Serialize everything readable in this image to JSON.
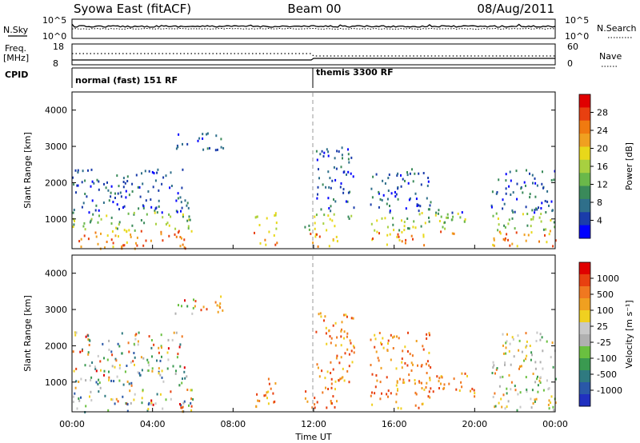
{
  "header": {
    "title_left": "Syowa East (fitACF)",
    "title_center": "Beam 00",
    "title_right": "08/Aug/2011"
  },
  "strips": {
    "nsky_label": "N.Sky",
    "nsky_top": "10^5",
    "nsky_bottom": "10^0",
    "nsearch_label": "N.Search",
    "nsearch_top": "10^5",
    "nsearch_bottom": "10^0",
    "freq_label_1": "Freq.",
    "freq_label_2": "[MHz]",
    "freq_top": "18",
    "freq_bottom": "8",
    "nave_label": "Nave",
    "nave_top": "60",
    "nave_bottom": "0",
    "cpid_label": "CPID",
    "cpid_mode_1": "normal (fast) 151 RF",
    "cpid_mode_2": "themis 3300 RF"
  },
  "panels": {
    "ylabel": "Slant Range [km]",
    "xlabel": "Time UT",
    "y_ticks": [
      "1000",
      "2000",
      "3000",
      "4000"
    ],
    "x_ticks": [
      "00:00",
      "04:00",
      "08:00",
      "12:00",
      "16:00",
      "20:00",
      "00:00"
    ]
  },
  "power_bar": {
    "label": "Power [dB]",
    "ticks": [
      "4",
      "8",
      "12",
      "16",
      "20",
      "24",
      "28"
    ],
    "colors": [
      "#0000ff",
      "#1a3caa",
      "#2f6f8a",
      "#3a8a5a",
      "#6ab84a",
      "#a8d040",
      "#e8d81a",
      "#f0a020",
      "#f07a10",
      "#e84010",
      "#e00000"
    ]
  },
  "velocity_bar": {
    "label": "Velocity [m s⁻¹]",
    "ticks": [
      "1000",
      "500",
      "100",
      "25",
      "-25",
      "-100",
      "-500",
      "-1000"
    ],
    "colors": [
      "#2030c0",
      "#2a58a8",
      "#2f7a80",
      "#3a9a50",
      "#6ac040",
      "#b0b0b0",
      "#c8c8c8",
      "#f0d020",
      "#f0a020",
      "#f07820",
      "#e84010",
      "#e00000"
    ]
  },
  "chart_data": {
    "type": "heatmap",
    "x_range_hours": [
      0,
      24
    ],
    "y_range_km": [
      180,
      4500
    ],
    "mode_change_hour": 12,
    "scatter_clusters": [
      {
        "t0": 0.0,
        "t1": 6.0,
        "r0": 200,
        "r1": 1600
      },
      {
        "t0": 0.0,
        "t1": 5.5,
        "r0": 1600,
        "r1": 2400
      },
      {
        "t0": 9.0,
        "t1": 10.2,
        "r0": 300,
        "r1": 1200
      },
      {
        "t0": 11.5,
        "t1": 13.2,
        "r0": 250,
        "r1": 1000
      },
      {
        "t0": 12.0,
        "t1": 14.0,
        "r0": 1000,
        "r1": 3000
      },
      {
        "t0": 14.8,
        "t1": 17.8,
        "r0": 300,
        "r1": 2400
      },
      {
        "t0": 17.5,
        "t1": 20.0,
        "r0": 600,
        "r1": 1300
      },
      {
        "t0": 20.8,
        "t1": 24.0,
        "r0": 250,
        "r1": 2400
      },
      {
        "t0": 5.0,
        "t1": 7.5,
        "r0": 2900,
        "r1": 3400
      }
    ]
  }
}
